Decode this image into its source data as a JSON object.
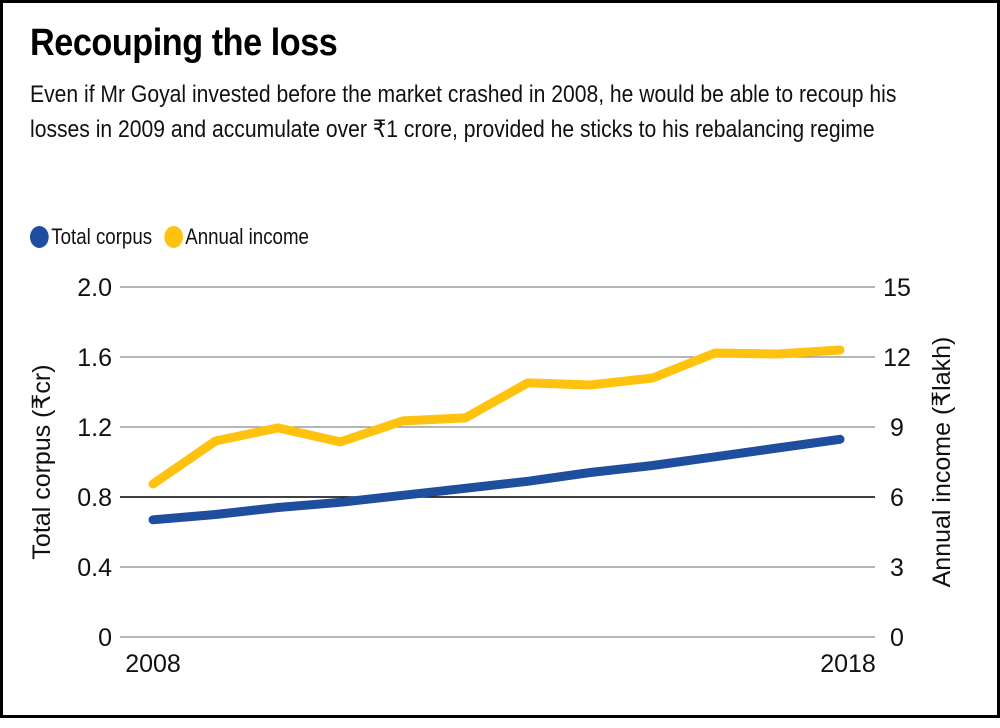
{
  "header": {
    "title": "Recouping the loss",
    "subtitle": "Even if Mr Goyal invested before the market crashed in 2008, he would be able to recoup his losses in 2009 and accumulate over ₹1 crore, provided he sticks to his rebalancing regime"
  },
  "legend": [
    {
      "label": "Total corpus",
      "color": "#1F4E9F"
    },
    {
      "label": "Annual income",
      "color": "#FFC20E"
    }
  ],
  "chart_data": {
    "type": "line",
    "title": "Recouping the loss",
    "xlabel": "",
    "x": [
      0,
      1,
      2,
      3,
      4,
      5,
      6,
      7,
      8,
      9,
      10,
      11
    ],
    "x_tick_labels": {
      "first": "2008",
      "last": "2018"
    },
    "y_left": {
      "label": "Total corpus (₹cr)",
      "range": [
        0,
        2.0
      ],
      "ticks": [
        "0",
        "0.4",
        "0.8",
        "1.2",
        "1.6",
        "2.0"
      ],
      "tick_values": [
        0,
        0.4,
        0.8,
        1.2,
        1.6,
        2.0
      ]
    },
    "y_right": {
      "label": "Annual income (₹lakh)",
      "range": [
        0,
        15
      ],
      "ticks": [
        "0",
        "3",
        "6",
        "9",
        "12",
        "15"
      ],
      "tick_values": [
        0,
        3,
        6,
        9,
        12,
        15
      ]
    },
    "grid": true,
    "legend_position": "top-left",
    "series": [
      {
        "name": "Total corpus",
        "axis": "left",
        "color": "#1F4E9F",
        "values": [
          0.67,
          0.7,
          0.74,
          0.77,
          0.81,
          0.85,
          0.89,
          0.94,
          0.98,
          1.03,
          1.08,
          1.13
        ]
      },
      {
        "name": "Annual income",
        "axis": "right",
        "color": "#FFC20E",
        "values": [
          6.56,
          8.4,
          8.96,
          8.36,
          9.26,
          9.39,
          10.89,
          10.8,
          11.1,
          12.17,
          12.13,
          12.3
        ]
      }
    ]
  }
}
